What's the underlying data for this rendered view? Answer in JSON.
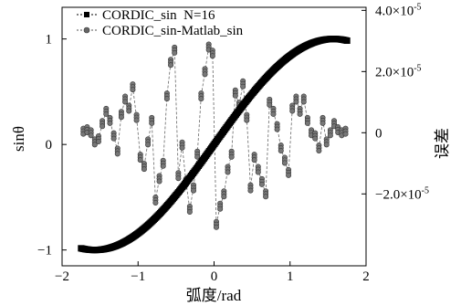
{
  "chart_data": {
    "type": "scatter",
    "xlabel": "弧度/rad",
    "ylabel_left": "sinθ",
    "ylabel_right": "误差",
    "xlim": [
      -2,
      2
    ],
    "ylim_left": [
      -1.15,
      1.3
    ],
    "ylim_right": [
      -4.35e-05,
      4.1e-05
    ],
    "x_ticks": [
      -2,
      -1,
      0,
      1,
      2
    ],
    "y_left_ticks": [
      -1,
      0,
      1
    ],
    "y_right_ticks": [
      {
        "value": 4e-05,
        "mantissa": "4.0×10",
        "exp": "-5"
      },
      {
        "value": 2e-05,
        "mantissa": "2.0×10",
        "exp": "-5"
      },
      {
        "value": 0,
        "mantissa": "0",
        "exp": ""
      },
      {
        "value": -2e-05,
        "mantissa": "−2.0×10",
        "exp": "-5"
      }
    ],
    "grid": false,
    "legend_position": "top-left",
    "series": [
      {
        "name": "CORDIC_sin  N=16",
        "axis": "left",
        "marker": "square",
        "color": "#000000",
        "function": "sin",
        "x_range": [
          -1.75,
          1.75
        ],
        "points": 250
      },
      {
        "name": "CORDIC_sin-Matlab_sin",
        "axis": "right",
        "marker": "circle",
        "color": "#555555",
        "x": [
          -1.72,
          -1.67,
          -1.62,
          -1.57,
          -1.52,
          -1.47,
          -1.42,
          -1.37,
          -1.32,
          -1.27,
          -1.22,
          -1.17,
          -1.12,
          -1.07,
          -1.02,
          -0.97,
          -0.92,
          -0.87,
          -0.82,
          -0.77,
          -0.72,
          -0.67,
          -0.62,
          -0.57,
          -0.52,
          -0.47,
          -0.42,
          -0.37,
          -0.32,
          -0.27,
          -0.22,
          -0.17,
          -0.12,
          -0.07,
          -0.02,
          0.03,
          0.08,
          0.13,
          0.18,
          0.23,
          0.28,
          0.33,
          0.38,
          0.43,
          0.48,
          0.53,
          0.58,
          0.63,
          0.68,
          0.73,
          0.78,
          0.83,
          0.88,
          0.93,
          0.98,
          1.03,
          1.08,
          1.13,
          1.18,
          1.23,
          1.28,
          1.33,
          1.38,
          1.43,
          1.48,
          1.53,
          1.58,
          1.63,
          1.68,
          1.73
        ],
        "y": [
          5e-07,
          1e-06,
          0.0,
          -3e-06,
          -2e-06,
          3e-06,
          7e-06,
          4e-06,
          -1e-06,
          -6e-06,
          6e-06,
          1.1e-05,
          8e-06,
          1.5e-05,
          5e-06,
          -8e-06,
          -1.1e-05,
          -3e-06,
          4e-06,
          -2.2e-05,
          -1.5e-05,
          -1e-05,
          1.2e-05,
          2.3e-05,
          2.7e-05,
          -1.4e-05,
          -4e-06,
          -1.6e-05,
          -2.5e-05,
          -1.8e-05,
          -7e-06,
          1.2e-05,
          2e-05,
          2.8e-05,
          2.6e-05,
          -3e-05,
          -2.4e-05,
          -2e-05,
          -1.2e-05,
          -7e-06,
          1.3e-05,
          9e-06,
          1.6e-05,
          5e-06,
          -1.8e-05,
          -8e-06,
          -1.2e-05,
          -1.6e-05,
          -2e-05,
          1e-05,
          7e-06,
          2e-06,
          -5e-06,
          -9e-06,
          -1.3e-05,
          8e-06,
          1.1e-05,
          7e-06,
          1.1e-05,
          4e-06,
          0.0,
          -1e-06,
          -5e-06,
          4e-06,
          -3e-06,
          0.0,
          3e-06,
          1e-06,
          0.0,
          5e-07
        ]
      }
    ]
  }
}
